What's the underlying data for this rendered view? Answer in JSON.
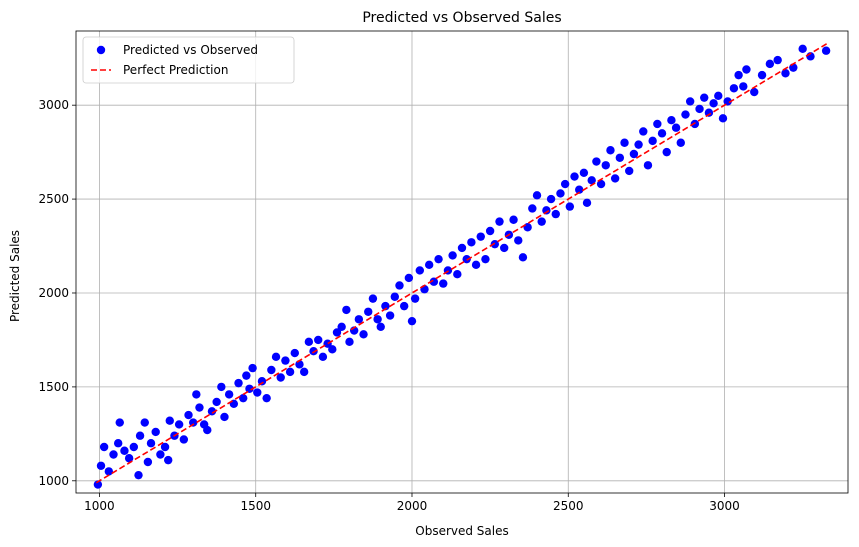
{
  "chart_data": {
    "type": "scatter",
    "title": "Predicted vs Observed Sales",
    "xlabel": "Observed Sales",
    "ylabel": "Predicted Sales",
    "xlim": [
      925,
      3395
    ],
    "ylim": [
      935,
      3395
    ],
    "xticks": [
      1000,
      1500,
      2000,
      2500,
      3000
    ],
    "yticks": [
      1000,
      1500,
      2000,
      2500,
      3000
    ],
    "grid": true,
    "legend": "top-left",
    "colors": {
      "points": "#0000ff",
      "reference_line": "#ff0000"
    },
    "series": [
      {
        "name": "Predicted vs Observed",
        "kind": "scatter",
        "points": [
          [
            995,
            980
          ],
          [
            1005,
            1080
          ],
          [
            1015,
            1180
          ],
          [
            1030,
            1050
          ],
          [
            1045,
            1140
          ],
          [
            1060,
            1200
          ],
          [
            1065,
            1310
          ],
          [
            1080,
            1160
          ],
          [
            1095,
            1120
          ],
          [
            1110,
            1180
          ],
          [
            1125,
            1030
          ],
          [
            1130,
            1240
          ],
          [
            1145,
            1310
          ],
          [
            1155,
            1100
          ],
          [
            1165,
            1200
          ],
          [
            1180,
            1260
          ],
          [
            1195,
            1140
          ],
          [
            1210,
            1180
          ],
          [
            1220,
            1110
          ],
          [
            1225,
            1320
          ],
          [
            1240,
            1240
          ],
          [
            1255,
            1300
          ],
          [
            1270,
            1220
          ],
          [
            1285,
            1350
          ],
          [
            1300,
            1310
          ],
          [
            1310,
            1460
          ],
          [
            1320,
            1390
          ],
          [
            1335,
            1300
          ],
          [
            1345,
            1270
          ],
          [
            1360,
            1370
          ],
          [
            1375,
            1420
          ],
          [
            1390,
            1500
          ],
          [
            1400,
            1340
          ],
          [
            1415,
            1460
          ],
          [
            1430,
            1410
          ],
          [
            1445,
            1520
          ],
          [
            1460,
            1440
          ],
          [
            1470,
            1560
          ],
          [
            1480,
            1490
          ],
          [
            1490,
            1600
          ],
          [
            1505,
            1470
          ],
          [
            1520,
            1530
          ],
          [
            1535,
            1440
          ],
          [
            1550,
            1590
          ],
          [
            1565,
            1660
          ],
          [
            1580,
            1550
          ],
          [
            1595,
            1640
          ],
          [
            1610,
            1580
          ],
          [
            1625,
            1680
          ],
          [
            1640,
            1620
          ],
          [
            1655,
            1580
          ],
          [
            1670,
            1740
          ],
          [
            1685,
            1690
          ],
          [
            1700,
            1750
          ],
          [
            1715,
            1660
          ],
          [
            1730,
            1730
          ],
          [
            1745,
            1700
          ],
          [
            1760,
            1790
          ],
          [
            1775,
            1820
          ],
          [
            1790,
            1910
          ],
          [
            1800,
            1740
          ],
          [
            1815,
            1800
          ],
          [
            1830,
            1860
          ],
          [
            1845,
            1780
          ],
          [
            1860,
            1900
          ],
          [
            1875,
            1970
          ],
          [
            1890,
            1860
          ],
          [
            1900,
            1820
          ],
          [
            1915,
            1930
          ],
          [
            1930,
            1880
          ],
          [
            1945,
            1980
          ],
          [
            1960,
            2040
          ],
          [
            1975,
            1930
          ],
          [
            1990,
            2080
          ],
          [
            2000,
            1850
          ],
          [
            2010,
            1970
          ],
          [
            2025,
            2120
          ],
          [
            2040,
            2020
          ],
          [
            2055,
            2150
          ],
          [
            2070,
            2060
          ],
          [
            2085,
            2180
          ],
          [
            2100,
            2050
          ],
          [
            2115,
            2120
          ],
          [
            2130,
            2200
          ],
          [
            2145,
            2100
          ],
          [
            2160,
            2240
          ],
          [
            2175,
            2180
          ],
          [
            2190,
            2270
          ],
          [
            2205,
            2150
          ],
          [
            2220,
            2300
          ],
          [
            2235,
            2180
          ],
          [
            2250,
            2330
          ],
          [
            2265,
            2260
          ],
          [
            2280,
            2380
          ],
          [
            2295,
            2240
          ],
          [
            2310,
            2310
          ],
          [
            2325,
            2390
          ],
          [
            2340,
            2280
          ],
          [
            2355,
            2190
          ],
          [
            2370,
            2350
          ],
          [
            2385,
            2450
          ],
          [
            2400,
            2520
          ],
          [
            2415,
            2380
          ],
          [
            2430,
            2440
          ],
          [
            2445,
            2500
          ],
          [
            2460,
            2420
          ],
          [
            2475,
            2530
          ],
          [
            2490,
            2580
          ],
          [
            2505,
            2460
          ],
          [
            2520,
            2620
          ],
          [
            2535,
            2550
          ],
          [
            2550,
            2640
          ],
          [
            2560,
            2480
          ],
          [
            2575,
            2600
          ],
          [
            2590,
            2700
          ],
          [
            2605,
            2580
          ],
          [
            2620,
            2680
          ],
          [
            2635,
            2760
          ],
          [
            2650,
            2610
          ],
          [
            2665,
            2720
          ],
          [
            2680,
            2800
          ],
          [
            2695,
            2650
          ],
          [
            2710,
            2740
          ],
          [
            2725,
            2790
          ],
          [
            2740,
            2860
          ],
          [
            2755,
            2680
          ],
          [
            2770,
            2810
          ],
          [
            2785,
            2900
          ],
          [
            2800,
            2850
          ],
          [
            2815,
            2750
          ],
          [
            2830,
            2920
          ],
          [
            2845,
            2880
          ],
          [
            2860,
            2800
          ],
          [
            2875,
            2950
          ],
          [
            2890,
            3020
          ],
          [
            2905,
            2900
          ],
          [
            2920,
            2980
          ],
          [
            2935,
            3040
          ],
          [
            2950,
            2960
          ],
          [
            2965,
            3010
          ],
          [
            2980,
            3050
          ],
          [
            2995,
            2930
          ],
          [
            3010,
            3020
          ],
          [
            3030,
            3090
          ],
          [
            3045,
            3160
          ],
          [
            3060,
            3100
          ],
          [
            3070,
            3190
          ],
          [
            3095,
            3070
          ],
          [
            3120,
            3160
          ],
          [
            3145,
            3220
          ],
          [
            3170,
            3240
          ],
          [
            3195,
            3170
          ],
          [
            3220,
            3200
          ],
          [
            3250,
            3300
          ],
          [
            3275,
            3260
          ],
          [
            3325,
            3290
          ]
        ]
      },
      {
        "name": "Perfect Prediction",
        "kind": "line",
        "style": "dashed",
        "points": [
          [
            990,
            990
          ],
          [
            3330,
            3330
          ]
        ]
      }
    ]
  }
}
